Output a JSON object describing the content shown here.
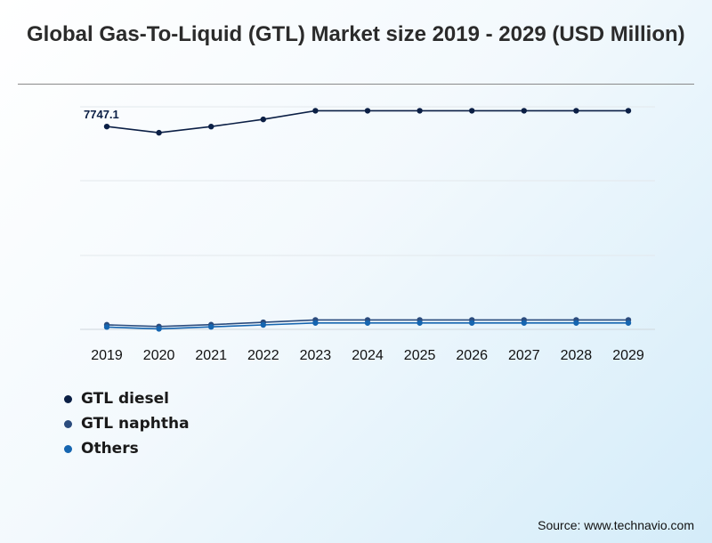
{
  "title": "Global Gas-To-Liquid (GTL) Market size 2019 - 2029 (USD Million)",
  "source": "Source: www.technavio.com",
  "chart_data": {
    "type": "line",
    "title": "Global Gas-To-Liquid (GTL) Market size 2019 - 2029 (USD Million)",
    "xlabel": "",
    "ylabel": "",
    "categories": [
      "2019",
      "2020",
      "2021",
      "2022",
      "2023",
      "2024",
      "2025",
      "2026",
      "2027",
      "2028",
      "2029"
    ],
    "ylim": [
      0,
      8500
    ],
    "grid": true,
    "legend_position": "bottom-left",
    "series": [
      {
        "name": "GTL diesel",
        "color": "#0b1f45",
        "values": [
          7747.1,
          7510,
          7745,
          8020,
          8350,
          8350,
          8350,
          8350,
          8350,
          8350,
          8350
        ]
      },
      {
        "name": "GTL naphtha",
        "color": "#2b4c7e",
        "values": [
          175,
          110,
          180,
          270,
          360,
          360,
          360,
          360,
          360,
          360,
          360
        ]
      },
      {
        "name": "Others",
        "color": "#1565b0",
        "values": [
          90,
          20,
          95,
          170,
          245,
          245,
          245,
          245,
          245,
          245,
          245
        ]
      }
    ],
    "annotations": [
      {
        "series": 0,
        "index": 0,
        "text": "7747.1"
      }
    ]
  }
}
